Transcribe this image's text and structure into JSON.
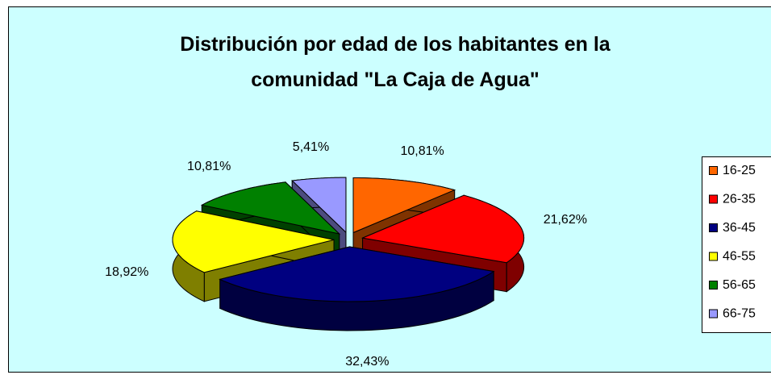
{
  "chart_data": {
    "type": "pie",
    "title": "Distribución por edad de los habitantes en la comunidad \"La Caja de Agua\"",
    "categories": [
      "16-25",
      "26-35",
      "36-45",
      "46-55",
      "56-65",
      "66-75"
    ],
    "values": [
      10.81,
      21.62,
      32.43,
      18.92,
      10.81,
      5.41
    ],
    "value_labels": [
      "10,81%",
      "21,62%",
      "32,43%",
      "18,92%",
      "10,81%",
      "5,41%"
    ],
    "colors": [
      "#FF6600",
      "#FF0000",
      "#000080",
      "#FFFF00",
      "#008000",
      "#9999FF"
    ],
    "legend": "right"
  }
}
